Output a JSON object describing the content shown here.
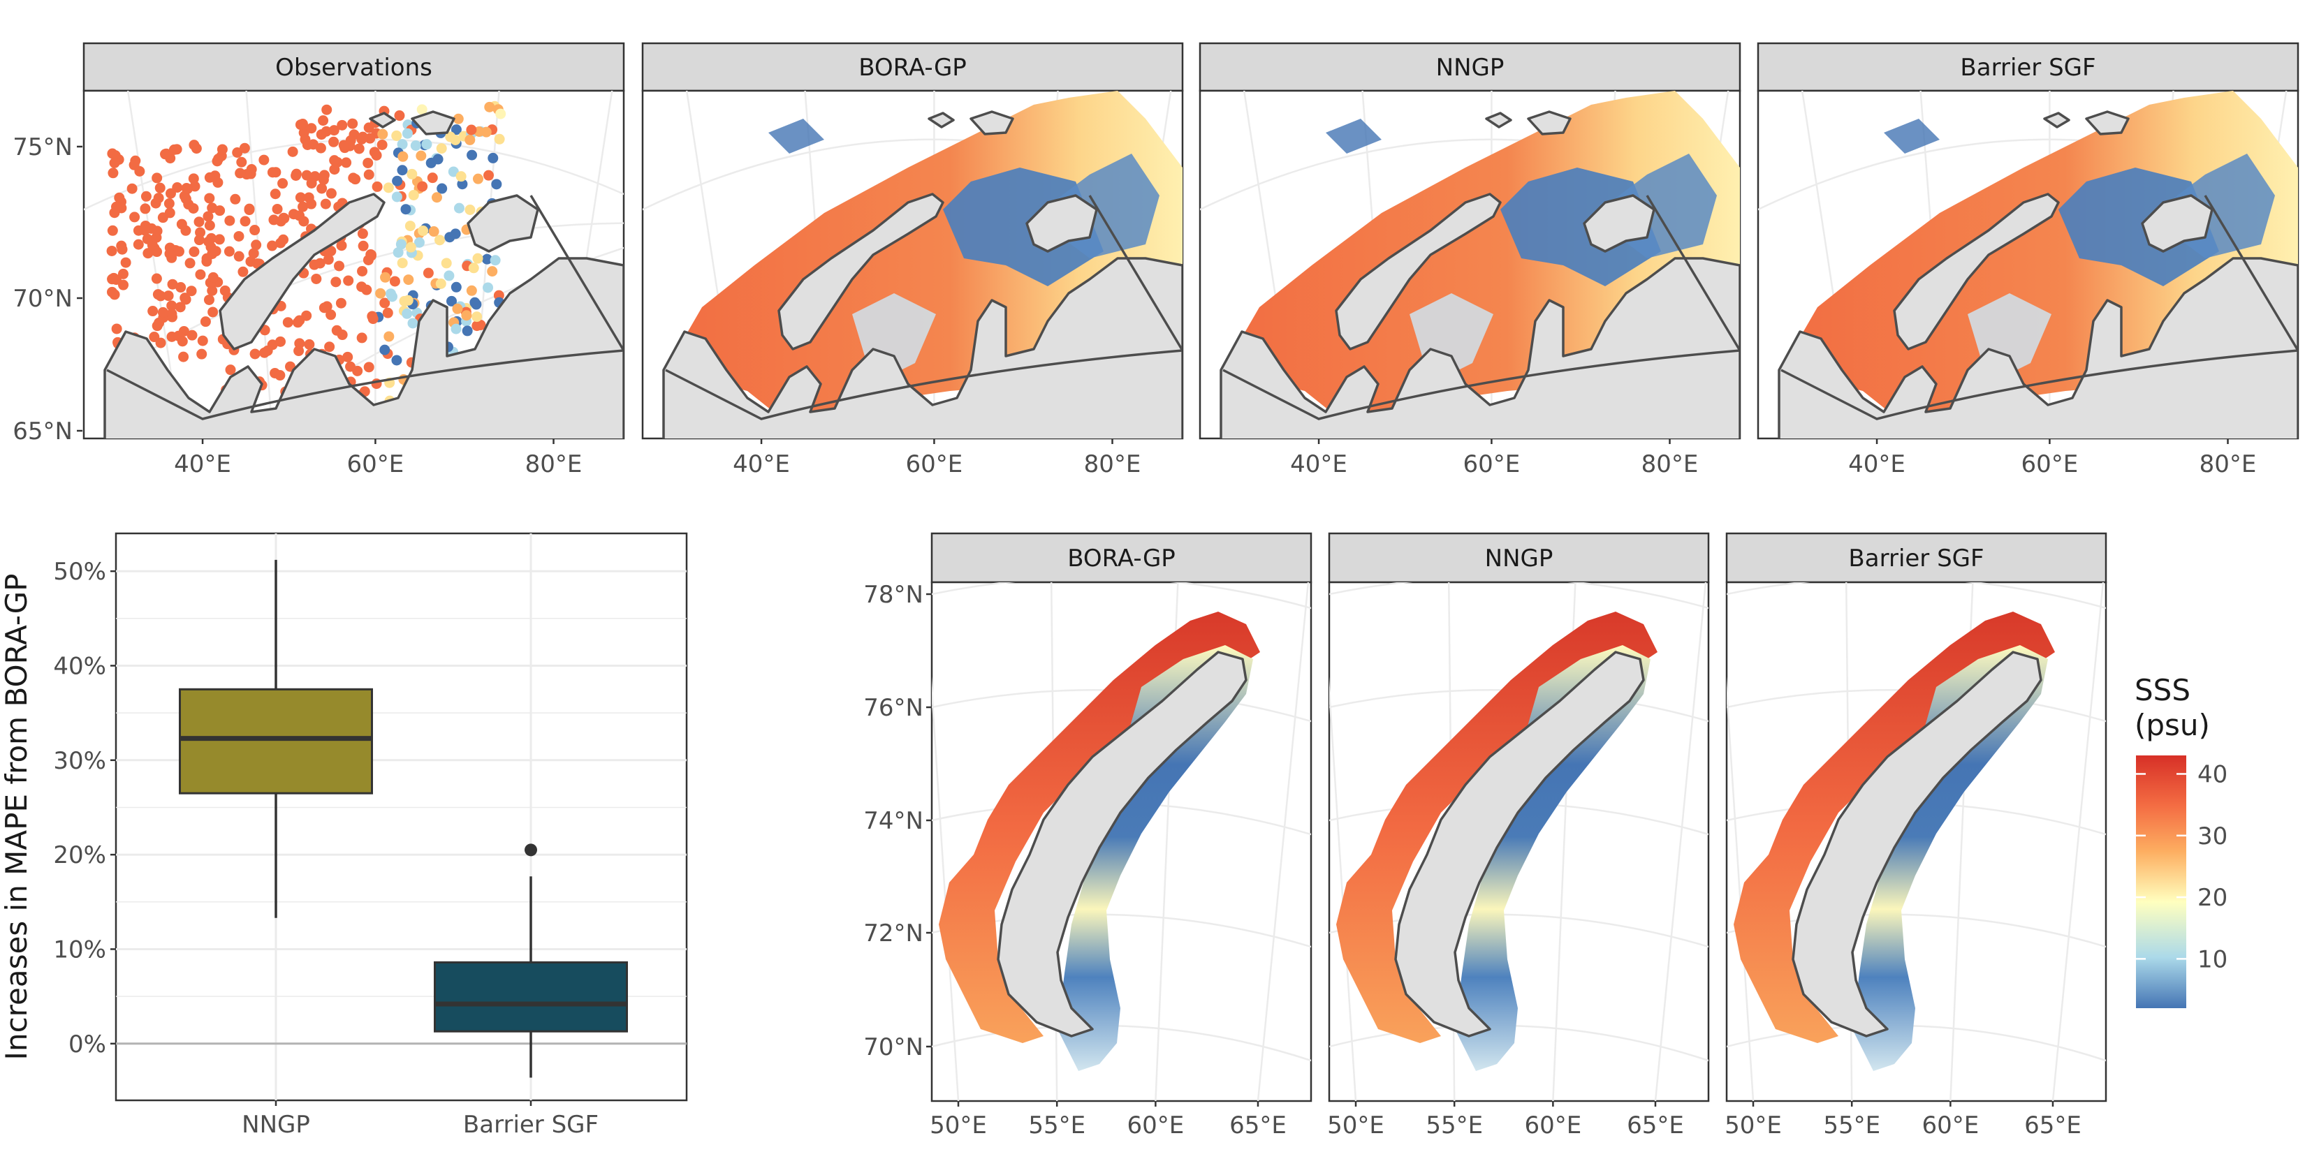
{
  "colors": {
    "strip_fill": "#d9d9d9",
    "land_fill": "#e0e0e0",
    "land_stroke": "#4d4d4d",
    "grid": "#ebebeb",
    "nngp_box": "#968a2c",
    "barrier_box": "#174c5e",
    "sss_scale": [
      "#4575b4",
      "#abd9e9",
      "#ffffbf",
      "#fdae61",
      "#f46d43",
      "#d73027"
    ]
  },
  "top_row": {
    "panels": [
      "Observations",
      "BORA-GP",
      "NNGP",
      "Barrier SGF"
    ],
    "y_ticks": [
      "65°N",
      "70°N",
      "75°N"
    ],
    "x_ticks": [
      "40°E",
      "60°E",
      "80°E"
    ]
  },
  "chart_data": [
    {
      "type": "box",
      "title": "",
      "xlabel": "",
      "ylabel": "Increases in MAPE from BORA-GP",
      "categories": [
        "NNGP",
        "Barrier SGF"
      ],
      "y_ticks": [
        "0%",
        "10%",
        "20%",
        "30%",
        "40%",
        "50%"
      ],
      "ylim": [
        -6,
        54
      ],
      "series": [
        {
          "category": "NNGP",
          "whisker_low": 13.3,
          "q1": 26.5,
          "median": 32.3,
          "q3": 37.5,
          "whisker_high": 51.2,
          "outliers": []
        },
        {
          "category": "Barrier SGF",
          "whisker_low": -3.6,
          "q1": 1.3,
          "median": 4.2,
          "q3": 8.6,
          "whisker_high": 17.7,
          "outliers": [
            20.5
          ]
        }
      ],
      "reference_line": 0,
      "grid": true
    },
    {
      "type": "map",
      "panels": [
        "BORA-GP",
        "NNGP",
        "Barrier SGF"
      ],
      "y_ticks": [
        "70°N",
        "72°N",
        "74°N",
        "76°N",
        "78°N"
      ],
      "x_ticks": [
        "50°E",
        "55°E",
        "60°E",
        "65°E"
      ],
      "legend": {
        "title_line1": "SSS",
        "title_line2": "(psu)",
        "ticks": [
          10,
          20,
          30,
          40
        ],
        "range": [
          2,
          43
        ],
        "placement": "right"
      }
    }
  ]
}
